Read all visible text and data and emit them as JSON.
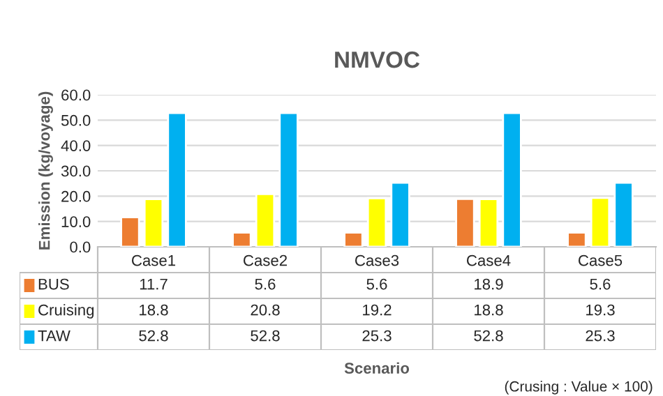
{
  "chart_data": {
    "type": "bar",
    "title": "NMVOC",
    "ylabel": "Emission (kg/voyage)",
    "categories": [
      "Case1",
      "Case2",
      "Case3",
      "Case4",
      "Case5"
    ],
    "series": [
      {
        "name": "BUS",
        "color": "#ed7d31",
        "values": [
          11.7,
          5.6,
          5.6,
          18.9,
          5.6
        ]
      },
      {
        "name": "Cruising",
        "color": "#ffff00",
        "values": [
          18.8,
          20.8,
          19.2,
          18.8,
          19.3
        ]
      },
      {
        "name": "TAW",
        "color": "#00b0f0",
        "values": [
          52.8,
          52.8,
          25.3,
          52.8,
          25.3
        ]
      }
    ],
    "ylim": [
      0,
      60
    ],
    "yticks": [
      {
        "value": 0,
        "label": "0.0"
      },
      {
        "value": 10,
        "label": "10.0"
      },
      {
        "value": 20,
        "label": "20.0"
      },
      {
        "value": 30,
        "label": "30.0"
      },
      {
        "value": 40,
        "label": "40.0"
      },
      {
        "value": 50,
        "label": "50.0"
      },
      {
        "value": 60,
        "label": "60.0"
      }
    ],
    "grid": "y",
    "data_labels": true,
    "legend": "bottom",
    "annotations": [
      "Scenario",
      "(Crusing : Value × 100)"
    ]
  }
}
